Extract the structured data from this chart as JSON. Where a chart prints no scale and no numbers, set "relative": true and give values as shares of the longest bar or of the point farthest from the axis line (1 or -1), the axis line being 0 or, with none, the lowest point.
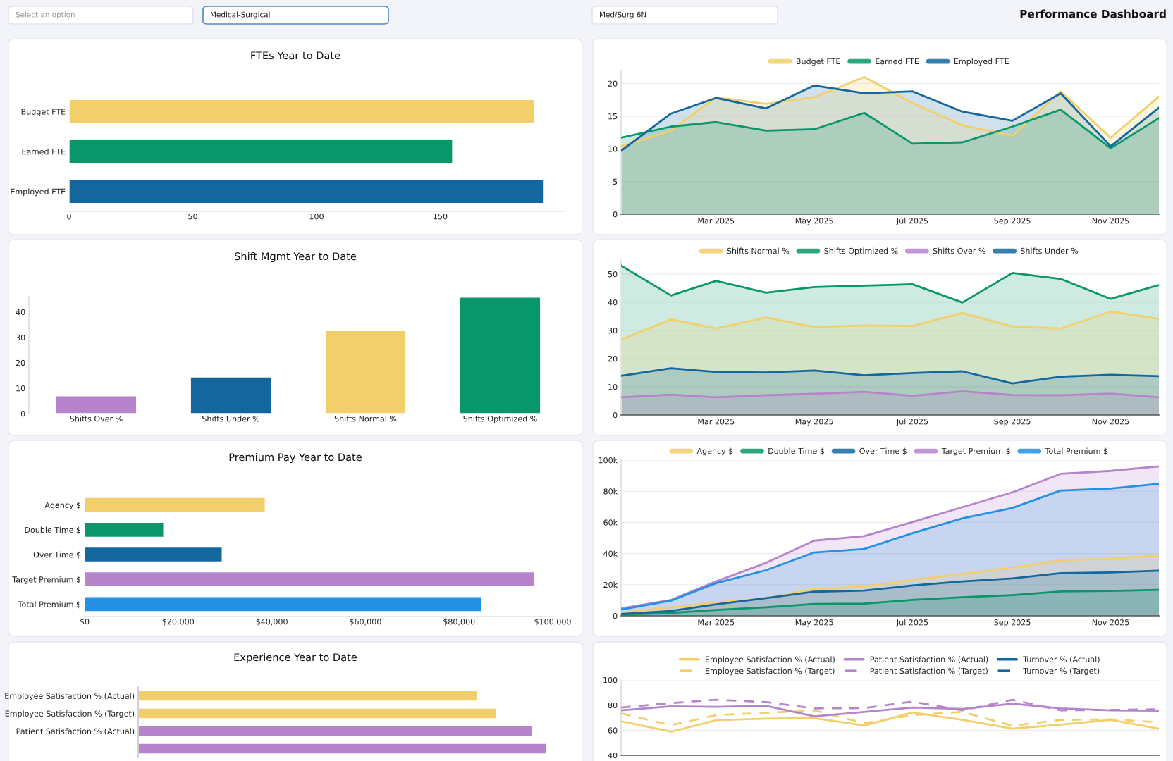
{
  "chart_data": [
    {
      "type": "other",
      "title": "Performance Dashboard",
      "annotations": [
        "Select an option",
        "Medical-Surgical",
        "Med/Surg 6N"
      ]
    },
    {
      "type": "bar",
      "title": "FTEs Year to Date",
      "orientation": "horizontal",
      "categories": [
        "Budget FTE",
        "Earned FTE",
        "Employed FTE"
      ],
      "values": [
        188,
        155,
        192
      ],
      "colors": [
        "#f2cf6b",
        "#08966a",
        "#13679e"
      ],
      "xlim": [
        0,
        200
      ],
      "xticks": [
        0,
        50,
        100,
        150
      ],
      "grid": false
    },
    {
      "type": "area",
      "x": [
        "2025-01",
        "2025-02",
        "2025-03",
        "2025-04",
        "2025-05",
        "2025-06",
        "2025-07",
        "2025-08",
        "2025-09",
        "2025-10",
        "2025-11",
        "2025-12"
      ],
      "xlim": [
        "2025-01",
        "2025-12"
      ],
      "xticks": [
        {
          "value": "2025-03",
          "label": "Mar 2025"
        },
        {
          "value": "2025-05",
          "label": "May 2025"
        },
        {
          "value": "2025-07",
          "label": "Jul 2025"
        },
        {
          "value": "2025-09",
          "label": "Sep 2025"
        },
        {
          "value": "2025-11",
          "label": "Nov 2025"
        }
      ],
      "ylim": [
        0,
        22
      ],
      "yticks": [
        0,
        5,
        10,
        15,
        20
      ],
      "grid": "y",
      "legend": "top",
      "series": [
        {
          "name": "Budget FTE",
          "color": "#f2cf6b",
          "values": [
            10.4,
            12.8,
            17.9,
            16.9,
            17.9,
            21.0,
            17.0,
            13.6,
            12.0,
            18.8,
            11.7,
            18.0
          ]
        },
        {
          "name": "Earned FTE",
          "color": "#08966a",
          "values": [
            11.7,
            13.4,
            14.1,
            12.8,
            13.0,
            15.5,
            10.8,
            11.0,
            13.4,
            16.0,
            10.1,
            14.7
          ]
        },
        {
          "name": "Employed FTE",
          "color": "#13679e",
          "values": [
            9.7,
            15.4,
            17.8,
            16.2,
            19.7,
            18.5,
            18.8,
            15.7,
            14.3,
            18.5,
            10.4,
            16.3
          ]
        }
      ]
    },
    {
      "type": "bar",
      "title": "Shift Mgmt Year to Date",
      "categories": [
        "Shifts Over %",
        "Shifts Under %",
        "Shifts Normal %",
        "Shifts Optimized %"
      ],
      "values": [
        7.0,
        14.4,
        32.6,
        45.8
      ],
      "colors": [
        "#b684cb",
        "#13679e",
        "#f2cf6b",
        "#08966a"
      ],
      "ylim": [
        0,
        46
      ],
      "yticks": [
        0,
        10,
        20,
        30,
        40
      ],
      "grid": false
    },
    {
      "type": "area",
      "x": [
        "2025-01",
        "2025-02",
        "2025-03",
        "2025-04",
        "2025-05",
        "2025-06",
        "2025-07",
        "2025-08",
        "2025-09",
        "2025-10",
        "2025-11",
        "2025-12"
      ],
      "xlim": [
        "2025-01",
        "2025-12"
      ],
      "xticks": [
        {
          "value": "2025-03",
          "label": "Mar 2025"
        },
        {
          "value": "2025-05",
          "label": "May 2025"
        },
        {
          "value": "2025-07",
          "label": "Jul 2025"
        },
        {
          "value": "2025-09",
          "label": "Sep 2025"
        },
        {
          "value": "2025-11",
          "label": "Nov 2025"
        }
      ],
      "ylim": [
        0,
        55
      ],
      "yticks": [
        0,
        10,
        20,
        30,
        40,
        50
      ],
      "grid": "y",
      "legend": "top",
      "series": [
        {
          "name": "Shifts Normal %",
          "color": "#f2cf6b",
          "values": [
            26.7,
            33.9,
            30.7,
            34.6,
            31.2,
            31.8,
            31.6,
            36.2,
            31.4,
            30.7,
            36.7,
            34.1
          ]
        },
        {
          "name": "Shifts Optimized %",
          "color": "#08966a",
          "values": [
            53.0,
            42.4,
            47.6,
            43.4,
            45.4,
            45.9,
            46.4,
            39.9,
            50.4,
            48.3,
            41.2,
            46.1
          ]
        },
        {
          "name": "Shifts Over %",
          "color": "#b684cb",
          "values": [
            6.3,
            7.2,
            6.3,
            7.0,
            7.5,
            8.2,
            6.8,
            8.4,
            7.1,
            7.0,
            7.6,
            6.3
          ]
        },
        {
          "name": "Shifts Under %",
          "color": "#13679e",
          "values": [
            13.9,
            16.6,
            15.3,
            15.1,
            15.8,
            14.1,
            14.9,
            15.5,
            11.2,
            13.6,
            14.3,
            13.8
          ]
        }
      ]
    },
    {
      "type": "bar",
      "title": "Premium Pay Year to Date",
      "orientation": "horizontal",
      "categories": [
        "Agency $",
        "Double Time $",
        "Over Time $",
        "Target Premium $",
        "Total Premium $"
      ],
      "values": [
        38600,
        16900,
        29400,
        96200,
        84900
      ],
      "colors": [
        "#f2cf6b",
        "#08966a",
        "#13679e",
        "#b684cb",
        "#2391e3"
      ],
      "xlim": [
        0,
        100000
      ],
      "xticks": [
        {
          "value": 0,
          "label": "$0"
        },
        {
          "value": 20000,
          "label": "$20,000"
        },
        {
          "value": 40000,
          "label": "$40,000"
        },
        {
          "value": 60000,
          "label": "$60,000"
        },
        {
          "value": 80000,
          "label": "$80,000"
        },
        {
          "value": 100000,
          "label": "$100,000"
        }
      ],
      "grid": false
    },
    {
      "type": "area",
      "x": [
        "2025-01",
        "2025-02",
        "2025-03",
        "2025-04",
        "2025-05",
        "2025-06",
        "2025-07",
        "2025-08",
        "2025-09",
        "2025-10",
        "2025-11",
        "2025-12"
      ],
      "xlim": [
        "2025-01",
        "2025-12"
      ],
      "xticks": [
        {
          "value": "2025-03",
          "label": "Mar 2025"
        },
        {
          "value": "2025-05",
          "label": "May 2025"
        },
        {
          "value": "2025-07",
          "label": "Jul 2025"
        },
        {
          "value": "2025-09",
          "label": "Sep 2025"
        },
        {
          "value": "2025-11",
          "label": "Nov 2025"
        }
      ],
      "ylim": [
        0,
        100000
      ],
      "yticks": [
        0,
        {
          "value": 20000,
          "label": "20k"
        },
        {
          "value": 40000,
          "label": "40k"
        },
        {
          "value": 60000,
          "label": "60k"
        },
        {
          "value": 80000,
          "label": "80k"
        },
        {
          "value": 100000,
          "label": "100k"
        }
      ],
      "grid": "y",
      "legend": "top",
      "series": [
        {
          "name": "Agency $",
          "color": "#f2cf6b",
          "values": [
            1900,
            5500,
            8600,
            11400,
            17400,
            18600,
            23300,
            26900,
            31000,
            35700,
            36700,
            38800
          ]
        },
        {
          "name": "Double Time $",
          "color": "#08966a",
          "values": [
            700,
            1900,
            3800,
            5500,
            7600,
            7900,
            10200,
            11900,
            13300,
            15700,
            16000,
            16700
          ]
        },
        {
          "name": "Over Time $",
          "color": "#13679e",
          "values": [
            1200,
            3100,
            7400,
            11400,
            15500,
            16200,
            19500,
            22100,
            24000,
            27400,
            27900,
            29000
          ]
        },
        {
          "name": "Target Premium $",
          "color": "#b684cb",
          "values": [
            4800,
            10200,
            22100,
            34000,
            48300,
            51200,
            60200,
            69800,
            79300,
            91200,
            93100,
            96000
          ]
        },
        {
          "name": "Total Premium $",
          "color": "#2391e3",
          "values": [
            4000,
            9800,
            21000,
            29300,
            40700,
            42900,
            53100,
            62600,
            69300,
            80500,
            81700,
            84800
          ]
        }
      ]
    },
    {
      "type": "bar",
      "title": "Experience Year to Date",
      "orientation": "horizontal",
      "relative": true,
      "categories": [
        "Employee Satisfaction % (Actual)",
        "Employee Satisfaction % (Target)",
        "Patient Satisfaction % (Actual)",
        null
      ],
      "values": [
        0.832,
        0.878,
        0.966,
        1
      ],
      "colors": [
        "#f2cf6b",
        "#f2cf6b",
        "#b684cb",
        "#b684cb"
      ],
      "grid": false
    },
    {
      "type": "line",
      "x": [
        "2025-01",
        "2025-02",
        "2025-03",
        "2025-04",
        "2025-05",
        "2025-06",
        "2025-07",
        "2025-08",
        "2025-09",
        "2025-10",
        "2025-11",
        "2025-12"
      ],
      "xlim": [
        "2025-01",
        "2025-12"
      ],
      "ylim": [
        40,
        100
      ],
      "yticks": [
        40,
        60,
        80,
        100
      ],
      "grid": "y",
      "legend": "top",
      "tick_labels": "y",
      "series": [
        {
          "name": "Employee Satisfaction % (Actual)",
          "color": "#f2cf6b",
          "line_style": "solid",
          "values": [
            67.1,
            58.8,
            68.0,
            69.2,
            69.6,
            63.8,
            74.1,
            68.2,
            61.2,
            64.5,
            68.2,
            61.2
          ]
        },
        {
          "name": "Employee Satisfaction % (Target)",
          "color": "#f2cf6b",
          "line_style": "dashed",
          "values": [
            73.4,
            64.0,
            72.0,
            73.9,
            75.8,
            65.6,
            72.0,
            74.6,
            63.5,
            68.2,
            68.7,
            66.4
          ]
        },
        {
          "name": "Patient Satisfaction % (Actual)",
          "color": "#b684cb",
          "line_style": "solid",
          "values": [
            75.8,
            79.1,
            78.6,
            79.5,
            71.1,
            74.6,
            78.1,
            76.9,
            81.2,
            77.4,
            75.8,
            75.5
          ]
        },
        {
          "name": "Patient Satisfaction % (Target)",
          "color": "#b684cb",
          "line_style": "dashed",
          "values": [
            78.1,
            81.6,
            84.2,
            82.4,
            77.4,
            77.6,
            82.8,
            75.8,
            84.2,
            75.8,
            76.2,
            76.7
          ]
        },
        {
          "name": "Turnover % (Actual)",
          "color": "#13679e",
          "line_style": "solid",
          "values": [
            null,
            null,
            null,
            null,
            null,
            null,
            null,
            null,
            null,
            null,
            null,
            null
          ]
        },
        {
          "name": "Turnover % (Target)",
          "color": "#13679e",
          "line_style": "dashed",
          "values": [
            null,
            null,
            null,
            null,
            null,
            null,
            null,
            null,
            null,
            null,
            null,
            null
          ]
        }
      ]
    }
  ]
}
